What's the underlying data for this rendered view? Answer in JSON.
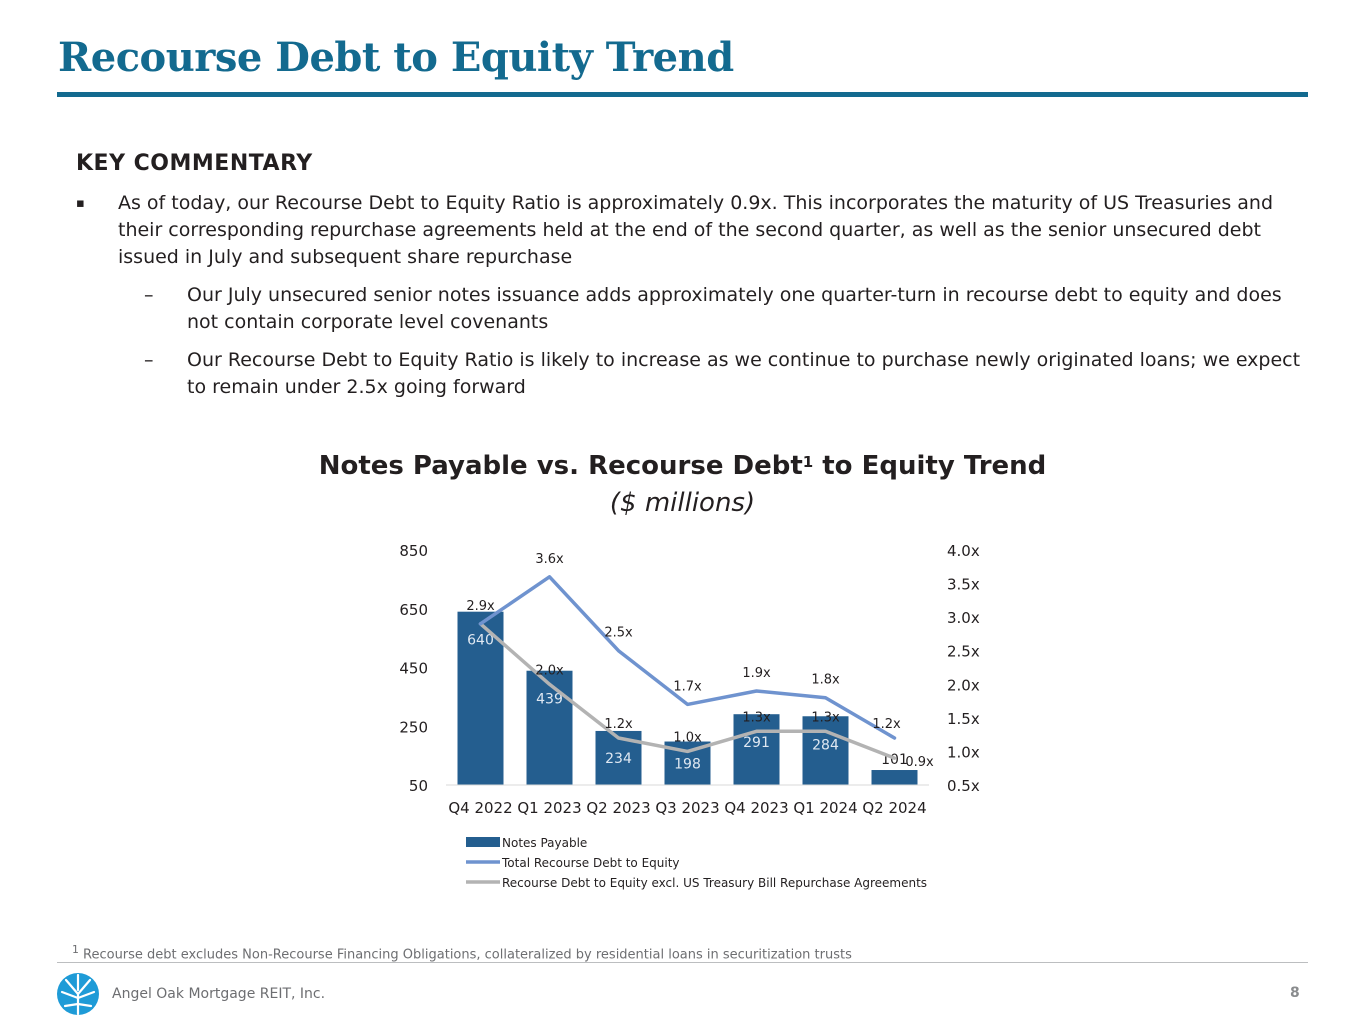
{
  "header": {
    "title": "Recourse Debt to Equity Trend"
  },
  "commentary": {
    "heading": "KEY COMMENTARY",
    "bullet_mark": "▪",
    "dash_mark": "–",
    "bullet": "As of today, our Recourse Debt to Equity Ratio is approximately 0.9x. This incorporates the maturity of US Treasuries and their corresponding repurchase agreements held at the end of the second quarter, as well as the senior unsecured debt issued in July and subsequent share repurchase",
    "sub_bullets": [
      "Our July unsecured senior notes issuance adds approximately one quarter-turn in recourse debt to equity and does not contain corporate level covenants",
      "Our Recourse Debt to Equity Ratio is likely to increase as we continue to purchase newly originated loans; we expect to remain under 2.5x going forward"
    ]
  },
  "chart_data": {
    "type": "bar",
    "title": "Notes Payable vs. Recourse Debt",
    "title_superscript": "1",
    "title_suffix": " to Equity Trend",
    "subtitle": "($ millions)",
    "categories": [
      "Q4 2022",
      "Q1 2023",
      "Q2 2023",
      "Q3 2023",
      "Q4 2023",
      "Q1 2024",
      "Q2 2024"
    ],
    "series": [
      {
        "name": "Notes Payable",
        "kind": "bar",
        "axis": "left",
        "color": "#245e8f",
        "values": [
          640,
          439,
          234,
          198,
          291,
          284,
          101
        ],
        "labels": [
          "640",
          "439",
          "234",
          "198",
          "291",
          "284",
          "101"
        ]
      },
      {
        "name": "Total Recourse Debt to Equity",
        "kind": "line",
        "axis": "right",
        "color": "#6f93cf",
        "values": [
          2.9,
          3.6,
          2.5,
          1.7,
          1.9,
          1.8,
          1.2
        ],
        "labels": [
          "2.9x",
          "3.6x",
          "2.5x",
          "1.7x",
          "1.9x",
          "1.8x",
          "1.2x"
        ]
      },
      {
        "name": "Recourse Debt to Equity excl. US Treasury Bill Repurchase Agreements",
        "kind": "line",
        "axis": "right",
        "color": "#b3b3b3",
        "values": [
          2.9,
          2.0,
          1.2,
          1.0,
          1.3,
          1.3,
          0.9
        ],
        "labels": [
          "",
          "2.0x",
          "1.2x",
          "1.0x",
          "1.3x",
          "1.3x",
          "0.9x"
        ]
      }
    ],
    "y_left": {
      "ticks": [
        "50",
        "250",
        "450",
        "650",
        "850"
      ],
      "min": 50,
      "max": 850
    },
    "y_right": {
      "ticks": [
        "0.5x",
        "1.0x",
        "1.5x",
        "2.0x",
        "2.5x",
        "3.0x",
        "3.5x",
        "4.0x"
      ],
      "min": 0.5,
      "max": 4.0
    },
    "grid": false,
    "legend_position": "bottom"
  },
  "footer": {
    "footnote_mark": "1",
    "footnote": " Recourse debt excludes Non-Recourse Financing Obligations, collateralized by residential loans in securitization trusts",
    "company": "Angel Oak Mortgage REIT, Inc.",
    "page_number": "8"
  }
}
